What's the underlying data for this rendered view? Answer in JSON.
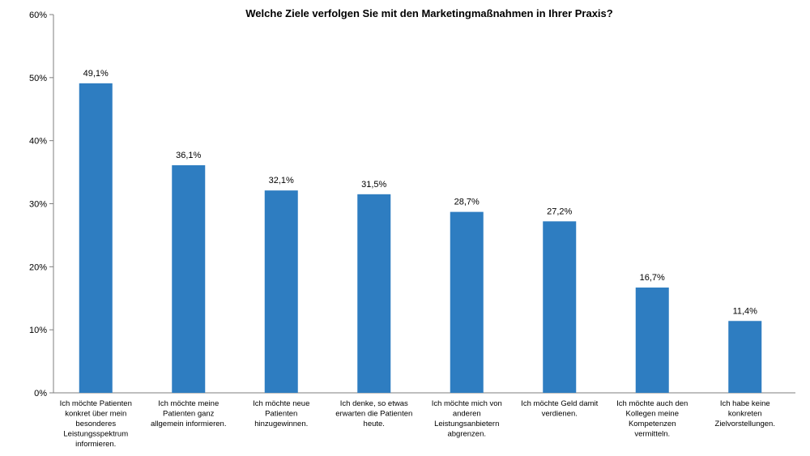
{
  "chart_data": {
    "type": "bar",
    "title": "Welche Ziele verfolgen Sie mit den Marketingmaßnahmen in Ihrer Praxis?",
    "xlabel": "",
    "ylabel": "",
    "ylim": [
      0,
      60
    ],
    "yticks": [
      0,
      10,
      20,
      30,
      40,
      50,
      60
    ],
    "ytick_labels": [
      "0%",
      "10%",
      "20%",
      "30%",
      "40%",
      "50%",
      "60%"
    ],
    "grid": false,
    "legend": "none",
    "bar_color": "#2E7DC1",
    "categories": [
      [
        "Ich möchte Patienten",
        "konkret über mein",
        "besonderes",
        "Leistungsspektrum",
        "informieren."
      ],
      [
        "Ich möchte meine",
        "Patienten ganz",
        "allgemein informieren."
      ],
      [
        "Ich möchte neue",
        "Patienten",
        "hinzugewinnen."
      ],
      [
        "Ich denke, so etwas",
        "erwarten die Patienten",
        "heute."
      ],
      [
        "Ich möchte mich von",
        "anderen",
        "Leistungsanbietern",
        "abgrenzen."
      ],
      [
        "Ich möchte Geld damit",
        "verdienen."
      ],
      [
        "Ich möchte auch den",
        "Kollegen meine",
        "Kompetenzen",
        "vermitteln."
      ],
      [
        "Ich habe keine",
        "konkreten",
        "Zielvorstellungen."
      ]
    ],
    "values": [
      49.1,
      36.1,
      32.1,
      31.5,
      28.7,
      27.2,
      16.7,
      11.4
    ],
    "data_labels": [
      "49,1%",
      "36,1%",
      "32,1%",
      "31,5%",
      "28,7%",
      "27,2%",
      "16,7%",
      "11,4%"
    ]
  }
}
